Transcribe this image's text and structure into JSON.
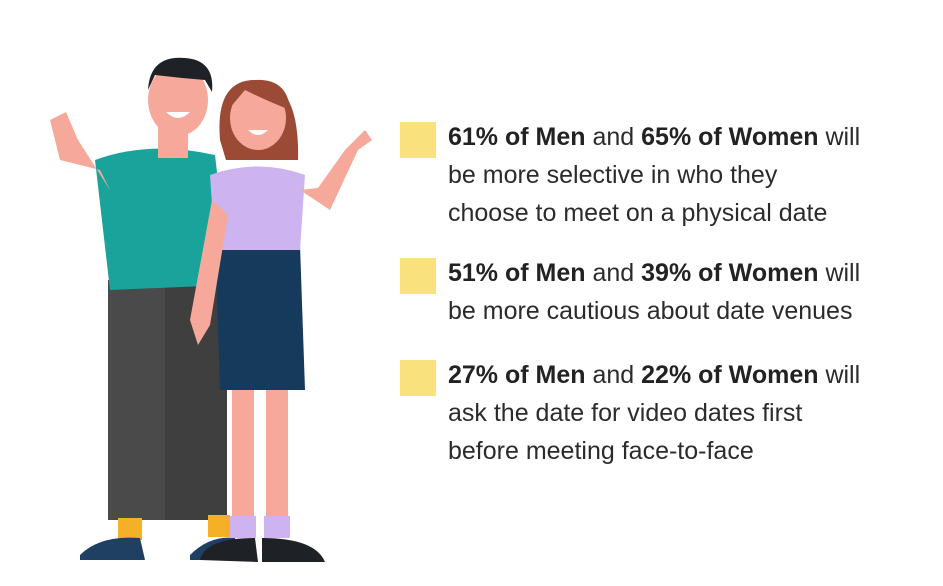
{
  "items": [
    {
      "men": "61% of Men",
      "and": "and",
      "women": "65% of Women",
      "will": "will",
      "lines": [
        "be more selective in who they",
        "choose to meet on a physical date"
      ]
    },
    {
      "men": "51% of Men",
      "and": "and",
      "women": "39% of Women",
      "will": "will",
      "lines": [
        "be more cautious about date venues"
      ]
    },
    {
      "men": "27% of Men",
      "and": "and",
      "women": "22% of Women",
      "will": "will",
      "lines": [
        "ask the date for video dates first",
        "before meeting face-to-face"
      ]
    }
  ]
}
